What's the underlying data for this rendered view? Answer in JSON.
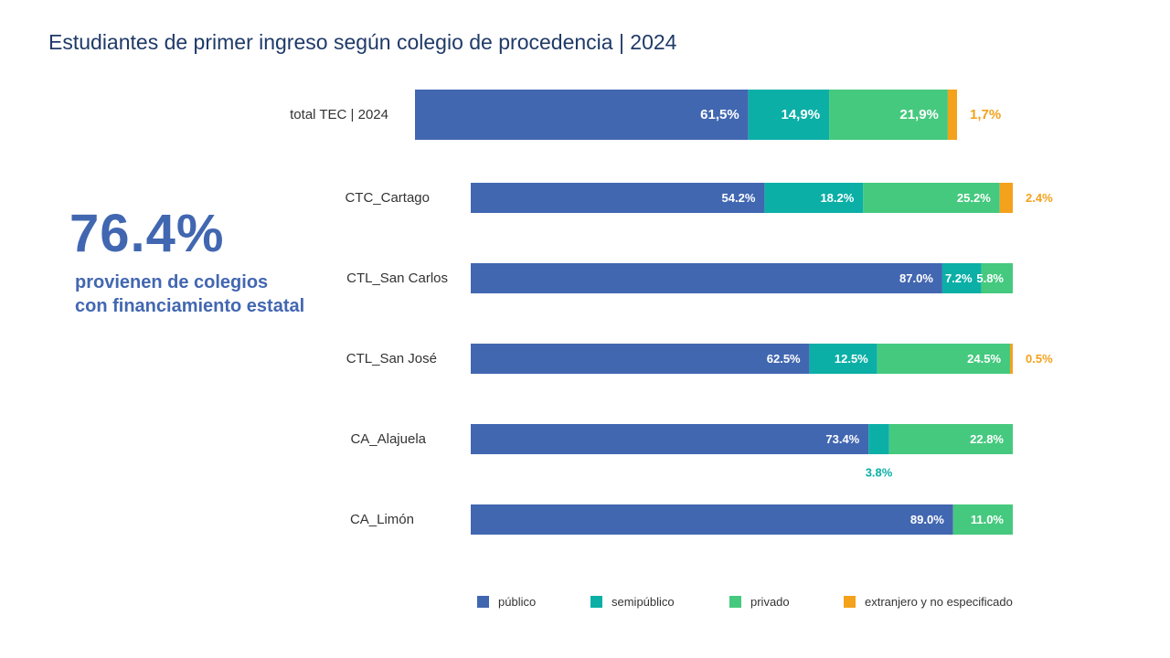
{
  "title": "Estudiantes de primer ingreso según colegio de procedencia | 2024",
  "kpi": {
    "value": "76.4%",
    "line1": "provienen de colegios",
    "line2": "con financiamiento estatal"
  },
  "colors": {
    "publico": "#4267b1",
    "semipublico": "#0bafa6",
    "privado": "#45c97e",
    "extranjero": "#f4a11c"
  },
  "chart_data": {
    "type": "bar",
    "orientation": "horizontal",
    "stacked": true,
    "percent_stacked": true,
    "categories": [
      "total TEC | 2024",
      "CTC_Cartago",
      "CTL_San Carlos",
      "CTL_San José",
      "CA_Alajuela",
      "CA_Limón"
    ],
    "series": [
      {
        "name": "público",
        "color": "#4267b1",
        "values": [
          61.5,
          54.2,
          87.0,
          62.5,
          73.4,
          89.0
        ],
        "labels": [
          "61,5%",
          "54.2%",
          "87.0%",
          "62.5%",
          "73.4%",
          "89.0%"
        ]
      },
      {
        "name": "semipúblico",
        "color": "#0bafa6",
        "values": [
          14.9,
          18.2,
          7.2,
          12.5,
          3.8,
          0
        ],
        "labels": [
          "14,9%",
          "18.2%",
          "7.2%",
          "12.5%",
          "3.8%",
          ""
        ]
      },
      {
        "name": "privado",
        "color": "#45c97e",
        "values": [
          21.9,
          25.2,
          5.8,
          24.5,
          22.8,
          11.0
        ],
        "labels": [
          "21,9%",
          "25.2%",
          "5.8%",
          "24.5%",
          "22.8%",
          "11.0%"
        ]
      },
      {
        "name": "extranjero y no especificado",
        "color": "#f4a11c",
        "values": [
          1.7,
          2.4,
          0,
          0.5,
          0,
          0
        ],
        "labels": [
          "1,7%",
          "2.4%",
          "",
          "0.5%",
          "",
          ""
        ]
      }
    ],
    "legend": {
      "position": "bottom"
    },
    "grid": false
  }
}
